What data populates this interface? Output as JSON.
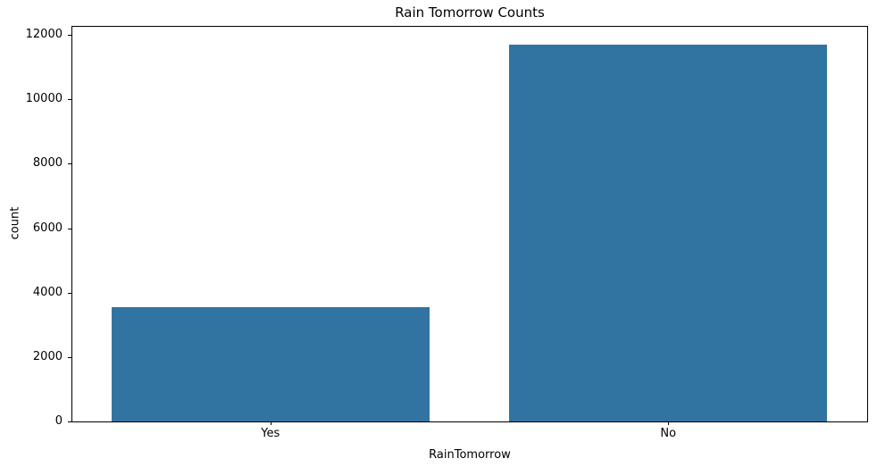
{
  "chart_data": {
    "type": "bar",
    "title": "Rain Tomorrow Counts",
    "xlabel": "RainTomorrow",
    "ylabel": "count",
    "categories": [
      "Yes",
      "No"
    ],
    "values": [
      3560,
      11700
    ],
    "yticks": [
      0,
      2000,
      4000,
      6000,
      8000,
      10000,
      12000
    ],
    "ylim": [
      0,
      12280
    ],
    "bar_color": "#3274a1",
    "bar_width_fraction": 0.8,
    "grid": false,
    "legend": false,
    "background_color": "#ffffff",
    "spine_color": "#000000"
  }
}
